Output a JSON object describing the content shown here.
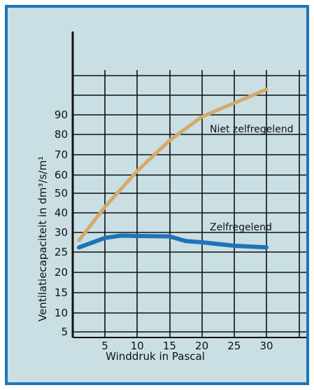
{
  "chart_data": {
    "type": "line",
    "xlabel": "Winddruk in Pascal",
    "ylabel": "Ventilatiecapaciteit in dm³/s/m¹",
    "xlim": [
      0,
      35
    ],
    "x_ticks": [
      5,
      10,
      15,
      20,
      25,
      30
    ],
    "y_ticks": [
      5,
      10,
      15,
      20,
      25,
      30,
      40,
      50,
      60,
      70,
      80,
      90
    ],
    "grid": true,
    "series": [
      {
        "name": "Niet zelfregelend",
        "color": "#d4a96a",
        "x": [
          0.5,
          5,
          10,
          15,
          20,
          25,
          30
        ],
        "y": [
          28,
          43,
          62,
          77,
          89,
          96,
          103
        ]
      },
      {
        "name": "Zelfregelend",
        "color": "#1f73b7",
        "x": [
          0.5,
          5,
          7.5,
          10,
          15,
          17.5,
          20,
          25,
          30
        ],
        "y": [
          26.2,
          28.6,
          29.2,
          29.1,
          29,
          27.8,
          27.5,
          26.6,
          26.2
        ]
      }
    ]
  },
  "colors": {
    "background": "#c9dfe3",
    "border": "#1f73b7",
    "grid": "#111111"
  }
}
